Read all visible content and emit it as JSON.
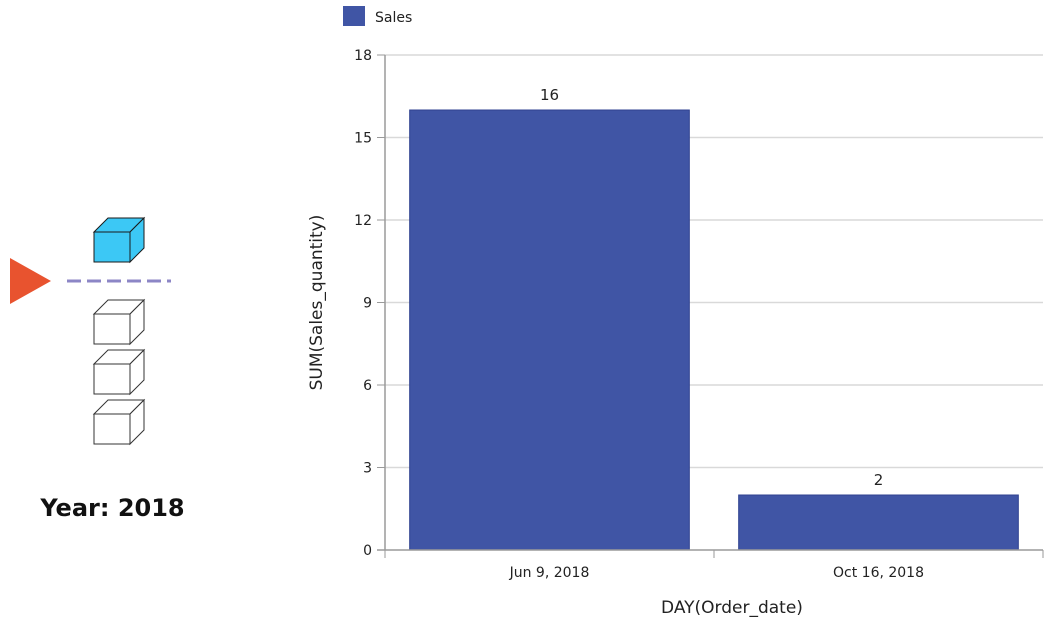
{
  "year_selector": {
    "label": "Year: 2018",
    "pointer_color": "#E8532F",
    "active_cube_color": "#3CC8F5",
    "inactive_cube_count": 3
  },
  "chart_data": {
    "type": "bar",
    "categories": [
      "Jun 9, 2018",
      "Oct 16, 2018"
    ],
    "series": [
      {
        "name": "Sales",
        "values": [
          16,
          2
        ],
        "color": "#4055A5"
      }
    ],
    "data_labels": [
      "16",
      "2"
    ],
    "xlabel": "DAY(Order_date)",
    "ylabel": "SUM(Sales_quantity)",
    "ylim": [
      0,
      18
    ],
    "yticks": [
      0,
      3,
      6,
      9,
      12,
      15,
      18
    ],
    "grid": true,
    "legend_position": "top-left"
  }
}
